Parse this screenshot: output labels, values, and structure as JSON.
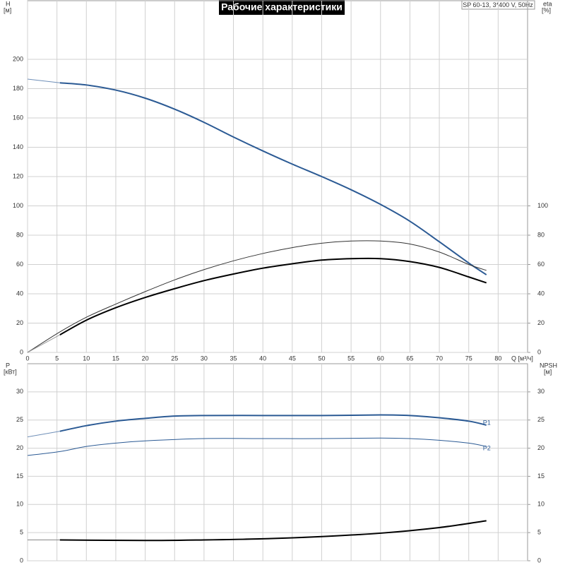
{
  "chart_data": [
    {
      "type": "line",
      "title": "Рабочие характеристики",
      "subtitle": "SP 60-13, 3*400 V, 50Hz",
      "y_label": "H",
      "y_unit": "[м]",
      "y2_label": "eta",
      "y2_unit": "[%]",
      "x_label": "Q [м³/ч]",
      "xlim": [
        0,
        85
      ],
      "xticks": [
        0,
        5,
        10,
        15,
        20,
        25,
        30,
        35,
        40,
        45,
        50,
        55,
        60,
        65,
        70,
        75,
        80
      ],
      "ylim": [
        0,
        240
      ],
      "yticks": [
        0,
        20,
        40,
        60,
        80,
        100,
        120,
        140,
        160,
        180,
        200
      ],
      "y2lim": [
        0,
        240
      ],
      "y2ticks": [
        0,
        20,
        40,
        60,
        80,
        100
      ],
      "grid": true,
      "series": [
        {
          "color": "#6f8fb8",
          "width": 1,
          "x": [
            0,
            5.5
          ],
          "values": [
            186.5,
            184
          ]
        },
        {
          "color": "#2b5a94",
          "width": 2,
          "x": [
            5.5,
            10,
            15,
            20,
            25,
            30,
            35,
            40,
            45,
            50,
            55,
            60,
            65,
            70,
            75,
            78
          ],
          "values": [
            184,
            182.5,
            179,
            173.5,
            166,
            157,
            147,
            137.5,
            128.5,
            120,
            111,
            101,
            89.5,
            75.5,
            61,
            53
          ]
        },
        {
          "color": "#333333",
          "width": 1,
          "axis": "y2",
          "x": [
            0,
            5.5,
            10,
            15,
            20,
            25,
            30,
            35,
            40,
            45,
            50,
            55,
            60,
            65,
            70,
            75,
            78
          ],
          "values": [
            0,
            14,
            24,
            33,
            41.5,
            49.5,
            56.5,
            62.5,
            67.5,
            71.5,
            74.5,
            76,
            76,
            74,
            68.5,
            60,
            56
          ]
        },
        {
          "color": "#999999",
          "width": 1,
          "axis": "y2",
          "x": [
            0,
            5.5
          ],
          "values": [
            0,
            12
          ]
        },
        {
          "color": "#000000",
          "width": 2,
          "axis": "y2",
          "x": [
            5.5,
            10,
            15,
            20,
            25,
            30,
            35,
            40,
            45,
            50,
            55,
            60,
            65,
            70,
            75,
            78
          ],
          "values": [
            12,
            22,
            30.5,
            37.5,
            43.5,
            49,
            53.5,
            57.5,
            60.5,
            63,
            64,
            64,
            62,
            58,
            51.5,
            47.5
          ]
        }
      ]
    },
    {
      "type": "line",
      "y_label": "P",
      "y_unit": "[кВт]",
      "y2_label": "NPSH",
      "y2_unit": "[м]",
      "xlim": [
        0,
        85
      ],
      "xticks": [
        0,
        5,
        10,
        15,
        20,
        25,
        30,
        35,
        40,
        45,
        50,
        55,
        60,
        65,
        70,
        75,
        80
      ],
      "ylim": [
        0,
        35
      ],
      "yticks": [
        0,
        5,
        10,
        15,
        20,
        25,
        30
      ],
      "y2lim": [
        0,
        35
      ],
      "y2ticks": [
        0,
        5,
        10,
        15,
        20,
        25,
        30
      ],
      "grid": true,
      "series": [
        {
          "color": "#6f8fb8",
          "width": 1,
          "x": [
            0,
            5.5
          ],
          "values": [
            22,
            23
          ]
        },
        {
          "name": "P1",
          "color": "#2b5a94",
          "width": 2,
          "x": [
            5.5,
            10,
            15,
            20,
            25,
            30,
            40,
            50,
            60,
            65,
            70,
            75,
            78
          ],
          "values": [
            23,
            24,
            24.8,
            25.3,
            25.7,
            25.8,
            25.8,
            25.8,
            25.9,
            25.8,
            25.4,
            24.8,
            24.1
          ]
        },
        {
          "name": "P2",
          "color": "#2b5a94",
          "width": 1,
          "x": [
            0,
            5.5,
            10,
            15,
            20,
            30,
            40,
            50,
            60,
            65,
            70,
            75,
            78
          ],
          "values": [
            18.7,
            19.4,
            20.3,
            20.9,
            21.3,
            21.7,
            21.7,
            21.7,
            21.8,
            21.7,
            21.4,
            20.9,
            20.3
          ]
        },
        {
          "color": "#888888",
          "width": 1,
          "axis": "y2",
          "x": [
            0,
            5.5
          ],
          "values": [
            3.7,
            3.7
          ]
        },
        {
          "color": "#000000",
          "width": 2,
          "axis": "y2",
          "x": [
            5.5,
            20,
            30,
            40,
            50,
            60,
            70,
            78
          ],
          "values": [
            3.7,
            3.6,
            3.7,
            3.9,
            4.3,
            4.9,
            5.9,
            7.1
          ]
        }
      ]
    }
  ]
}
